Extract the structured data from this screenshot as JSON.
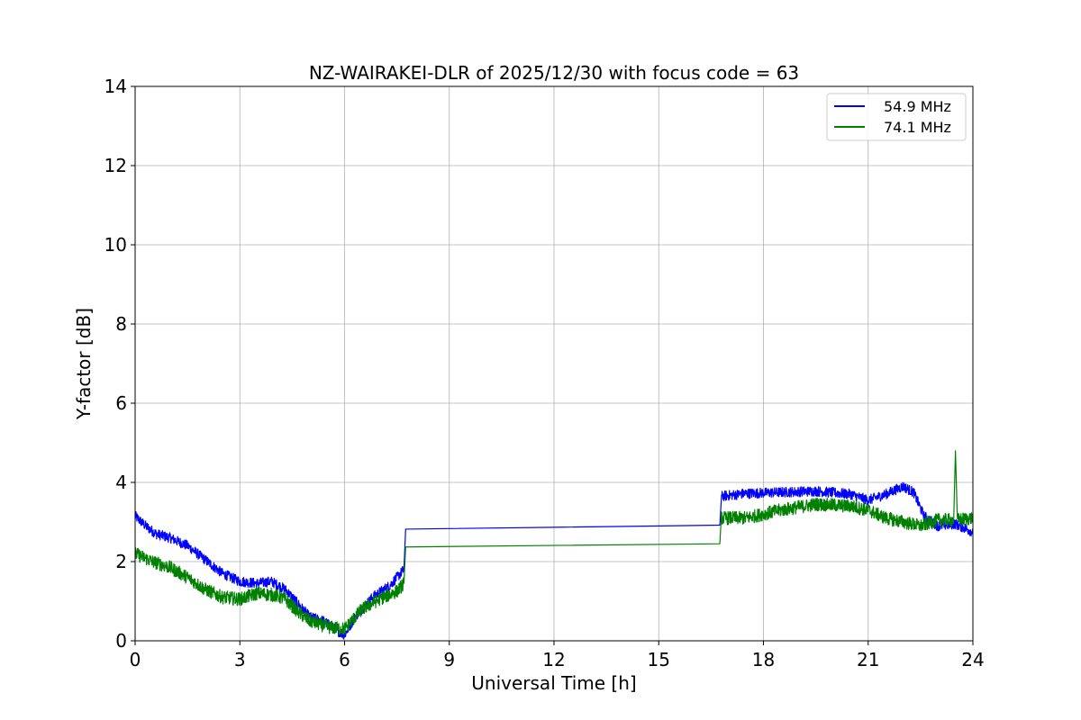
{
  "chart_data": {
    "type": "line",
    "title": "NZ-WAIRAKEI-DLR of 2025/12/30 with focus code = 63",
    "xlabel": "Universal Time [h]",
    "ylabel": "Y-factor [dB]",
    "xlim": [
      0,
      24
    ],
    "ylim": [
      0,
      14
    ],
    "xticks": [
      0,
      3,
      6,
      9,
      12,
      15,
      18,
      21,
      24
    ],
    "yticks": [
      0,
      2,
      4,
      6,
      8,
      10,
      12,
      14
    ],
    "grid": true,
    "legend_position": "top-right",
    "series": [
      {
        "name": "54.9 MHz",
        "color": "#0000ff",
        "noise": 0.13,
        "points": [
          [
            0,
            3.15
          ],
          [
            0.3,
            2.9
          ],
          [
            0.6,
            2.7
          ],
          [
            1.0,
            2.6
          ],
          [
            1.5,
            2.4
          ],
          [
            2.0,
            2.05
          ],
          [
            2.5,
            1.7
          ],
          [
            3.0,
            1.5
          ],
          [
            3.5,
            1.45
          ],
          [
            3.9,
            1.5
          ],
          [
            4.3,
            1.3
          ],
          [
            4.6,
            1.0
          ],
          [
            5.0,
            0.6
          ],
          [
            5.4,
            0.5
          ],
          [
            5.8,
            0.25
          ],
          [
            6.0,
            0.15
          ],
          [
            6.3,
            0.6
          ],
          [
            6.8,
            1.1
          ],
          [
            7.3,
            1.4
          ],
          [
            7.7,
            1.8
          ],
          [
            7.75,
            2.82
          ],
          [
            16.75,
            2.92
          ],
          [
            16.8,
            3.65
          ],
          [
            17.5,
            3.72
          ],
          [
            18.5,
            3.75
          ],
          [
            19.5,
            3.78
          ],
          [
            20.5,
            3.7
          ],
          [
            21.0,
            3.55
          ],
          [
            21.5,
            3.7
          ],
          [
            22.0,
            3.9
          ],
          [
            22.3,
            3.75
          ],
          [
            22.6,
            3.15
          ],
          [
            23.0,
            2.9
          ],
          [
            23.5,
            2.95
          ],
          [
            24.0,
            2.75
          ]
        ]
      },
      {
        "name": "74.1 MHz",
        "color": "#008000",
        "noise": 0.17,
        "points": [
          [
            0,
            2.2
          ],
          [
            0.5,
            2.0
          ],
          [
            1.0,
            1.85
          ],
          [
            1.5,
            1.6
          ],
          [
            2.0,
            1.3
          ],
          [
            2.5,
            1.1
          ],
          [
            3.0,
            1.05
          ],
          [
            3.5,
            1.2
          ],
          [
            4.0,
            1.15
          ],
          [
            4.3,
            1.05
          ],
          [
            4.7,
            0.7
          ],
          [
            5.0,
            0.5
          ],
          [
            5.5,
            0.35
          ],
          [
            6.0,
            0.3
          ],
          [
            6.5,
            0.8
          ],
          [
            7.0,
            1.05
          ],
          [
            7.5,
            1.25
          ],
          [
            7.7,
            1.45
          ],
          [
            7.75,
            2.37
          ],
          [
            16.75,
            2.45
          ],
          [
            16.8,
            3.1
          ],
          [
            17.5,
            3.1
          ],
          [
            18.5,
            3.3
          ],
          [
            19.5,
            3.45
          ],
          [
            20.5,
            3.4
          ],
          [
            21.0,
            3.3
          ],
          [
            21.5,
            3.1
          ],
          [
            22.0,
            3.0
          ],
          [
            22.5,
            2.9
          ],
          [
            23.0,
            3.05
          ],
          [
            23.45,
            3.05
          ],
          [
            23.5,
            4.8
          ],
          [
            23.55,
            3.05
          ],
          [
            24.0,
            3.1
          ]
        ]
      }
    ]
  }
}
